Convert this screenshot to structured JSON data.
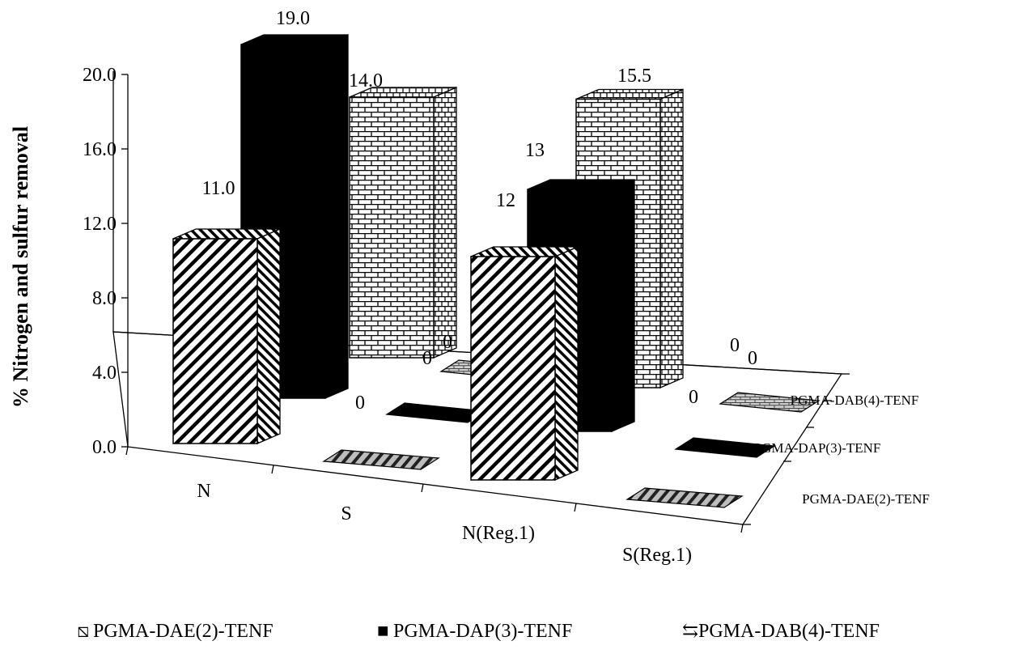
{
  "chart_data": {
    "type": "bar",
    "variant": "3d-clustered",
    "title": "",
    "xlabel": "",
    "ylabel": "% Nitrogen and sulfur removal",
    "ylim": [
      0,
      20
    ],
    "yticks": [
      "0.0",
      "4.0",
      "8.0",
      "12.0",
      "16.0",
      "20.0"
    ],
    "categories": [
      "N",
      "S",
      "N(Reg.1)",
      "S(Reg.1)"
    ],
    "series": [
      {
        "name": "PGMA-DAE(2)-TENF",
        "values": [
          11.0,
          0,
          12,
          0
        ],
        "labels": [
          "11.0",
          "0",
          "12",
          "0"
        ],
        "pattern": "diagonal-stripes"
      },
      {
        "name": "PGMA-DAP(3)-TENF",
        "values": [
          19.0,
          0,
          13,
          0
        ],
        "labels": [
          "19.0",
          "0",
          "13",
          "0"
        ],
        "pattern": "solid-black"
      },
      {
        "name": "PGMA-DAB(4)-TENF",
        "values": [
          14.0,
          0,
          15.5,
          0
        ],
        "labels": [
          "14.0",
          "0",
          "15.5",
          "0"
        ],
        "pattern": "brick"
      }
    ],
    "legend_position": "bottom",
    "legend_glyphs": [
      "⧅",
      "■",
      "⇆"
    ],
    "grid": false
  }
}
